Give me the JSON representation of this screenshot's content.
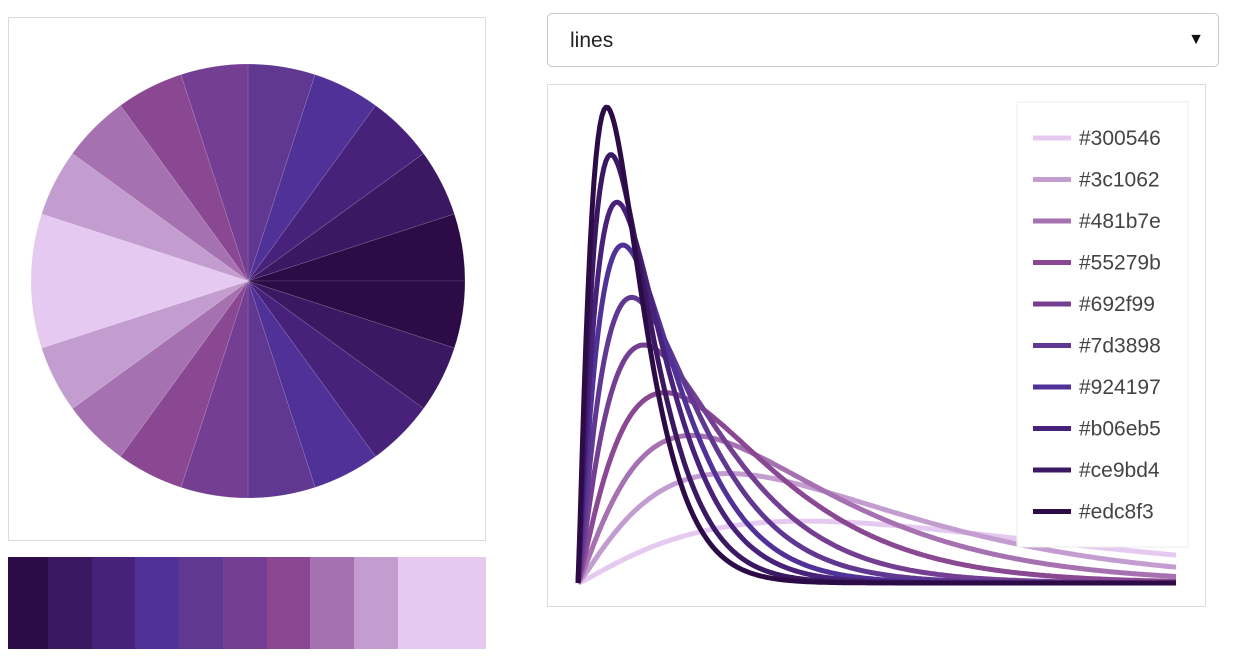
{
  "palette": {
    "colors": [
      "#300546",
      "#3c1062",
      "#481b7e",
      "#55279b",
      "#692f99",
      "#7d3898",
      "#924197",
      "#b06eb5",
      "#ce9bd4",
      "#edc8f3"
    ],
    "strip_colors": [
      "#2d0b46",
      "#3b1862",
      "#47217a",
      "#4f3197",
      "#603791",
      "#743f93",
      "#8a4893",
      "#a671b0",
      "#c39dd0",
      "#e6c9f0"
    ]
  },
  "select": {
    "value": "lines",
    "arrow_icon": "triangle-down-icon"
  },
  "chart_data": {
    "type": "line",
    "legend_position": "top-right",
    "grid": false,
    "series": [
      {
        "name": "#300546",
        "color": "#e6c9f0",
        "peak_x": 0.38,
        "peak_y": 0.13
      },
      {
        "name": "#3c1062",
        "color": "#c39dd0",
        "peak_x": 0.25,
        "peak_y": 0.23
      },
      {
        "name": "#481b7e",
        "color": "#a671b0",
        "peak_x": 0.19,
        "peak_y": 0.31
      },
      {
        "name": "#55279b",
        "color": "#8a4893",
        "peak_x": 0.145,
        "peak_y": 0.4
      },
      {
        "name": "#692f99",
        "color": "#743f93",
        "peak_x": 0.11,
        "peak_y": 0.5
      },
      {
        "name": "#7d3898",
        "color": "#603791",
        "peak_x": 0.09,
        "peak_y": 0.6
      },
      {
        "name": "#924197",
        "color": "#4f3197",
        "peak_x": 0.075,
        "peak_y": 0.71
      },
      {
        "name": "#b06eb5",
        "color": "#47217a",
        "peak_x": 0.065,
        "peak_y": 0.8
      },
      {
        "name": "#ce9bd4",
        "color": "#3b1862",
        "peak_x": 0.055,
        "peak_y": 0.9
      },
      {
        "name": "#edc8f3",
        "color": "#2d0b46",
        "peak_x": 0.048,
        "peak_y": 1.0
      }
    ]
  }
}
